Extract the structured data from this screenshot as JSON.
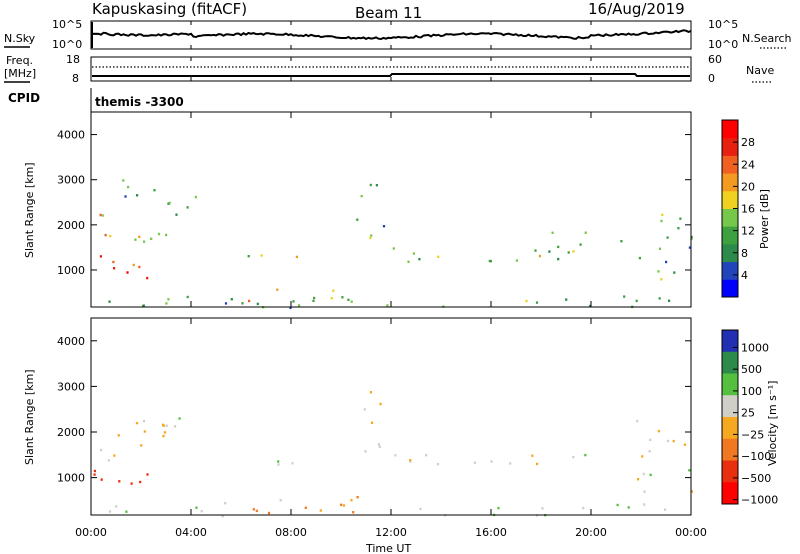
{
  "header": {
    "station": "Kapuskasing (fitACF)",
    "beam": "Beam 11",
    "date": "16/Aug/2019"
  },
  "summary_panels": {
    "nsky_label": "N.Sky",
    "nsearch_label": "N.Search",
    "freq_label_1": "Freq.",
    "freq_label_2": "[MHz]",
    "nave_label": "Nave",
    "cpid_label": "CPID",
    "cpid_value": "themis -3300",
    "noise_left_ticks": [
      "10^5",
      "10^0"
    ],
    "noise_right_ticks": [
      "10^5",
      "10^0"
    ],
    "freq_ticks": [
      "18",
      "8"
    ],
    "nave_ticks": [
      "60",
      "0"
    ]
  },
  "axes": {
    "ylabel": "Slant Range [km]",
    "xlabel": "Time UT",
    "yticks": [
      "1000",
      "2000",
      "3000",
      "4000"
    ],
    "xticks": [
      "00:00",
      "04:00",
      "08:00",
      "12:00",
      "16:00",
      "20:00",
      "00:00"
    ]
  },
  "colorbars": {
    "power": {
      "label": "Power [dB]",
      "ticks": [
        "4",
        "8",
        "12",
        "16",
        "20",
        "24",
        "28"
      ],
      "colors": [
        "#0000ff",
        "#2244bb",
        "#2e8a4a",
        "#3fa040",
        "#76c84a",
        "#f0d020",
        "#f59a20",
        "#f06020",
        "#e82010",
        "#ff0000"
      ]
    },
    "velocity": {
      "label": "Velocity [m s⁻¹]",
      "ticks": [
        "1000",
        "500",
        "100",
        "25",
        "−25",
        "−100",
        "−500",
        "−1000"
      ],
      "colors": [
        "#2030b0",
        "#2e8a4a",
        "#55c040",
        "#cfcfc8",
        "#f5a820",
        "#f07820",
        "#e83010",
        "#ff0000"
      ]
    }
  },
  "chart_data": {
    "type": "heatmap",
    "x_unit": "hours UT",
    "y_unit": "km",
    "xlim": [
      0,
      24
    ],
    "ylim": [
      180,
      4500
    ],
    "power_bands": [
      {
        "t0": 0.1,
        "t1": 3.3,
        "r0": 800,
        "r1": 1400,
        "level": 8
      },
      {
        "t0": 0.2,
        "t1": 3.0,
        "r0": 1400,
        "r1": 2300,
        "level": 5
      },
      {
        "t0": 0.3,
        "t1": 2.6,
        "r0": 2600,
        "r1": 3200,
        "level": 3
      },
      {
        "t0": 2.7,
        "t1": 4.2,
        "r0": 1900,
        "r1": 2700,
        "level": 3
      },
      {
        "t0": 6.2,
        "t1": 8.9,
        "r0": 1250,
        "r1": 1500,
        "level": 4
      },
      {
        "t0": 10.6,
        "t1": 11.8,
        "r0": 1600,
        "r1": 3100,
        "level": 3
      },
      {
        "t0": 12.0,
        "t1": 20.0,
        "r0": 1200,
        "r1": 1600,
        "level": 4
      },
      {
        "t0": 18.0,
        "t1": 21.5,
        "r0": 1400,
        "r1": 1900,
        "level": 3
      },
      {
        "t0": 21.8,
        "t1": 24.0,
        "r0": 700,
        "r1": 2300,
        "level": 3
      },
      {
        "t0": 0.0,
        "t1": 24.0,
        "r0": 180,
        "r1": 450,
        "level": 3
      },
      {
        "t0": 5.5,
        "t1": 11.0,
        "r0": 180,
        "r1": 600,
        "level": 5
      }
    ],
    "velocity_bands": [
      {
        "t0": 0.1,
        "t1": 3.3,
        "r0": 800,
        "r1": 1400,
        "v": -500
      },
      {
        "t0": 0.2,
        "t1": 3.0,
        "r0": 1400,
        "r1": 2300,
        "v": 0
      },
      {
        "t0": 2.7,
        "t1": 4.2,
        "r0": 1900,
        "r1": 2700,
        "v": 0
      },
      {
        "t0": 6.2,
        "t1": 8.9,
        "r0": 1250,
        "r1": 1500,
        "v": 0
      },
      {
        "t0": 10.6,
        "t1": 11.8,
        "r0": 1600,
        "r1": 3100,
        "v": 0
      },
      {
        "t0": 12.0,
        "t1": 20.0,
        "r0": 1200,
        "r1": 1600,
        "v": 0
      },
      {
        "t0": 21.8,
        "t1": 24.0,
        "r0": 700,
        "r1": 2300,
        "v": 0
      },
      {
        "t0": 0.0,
        "t1": 5.5,
        "r0": 180,
        "r1": 500,
        "v": 50
      },
      {
        "t0": 5.5,
        "t1": 12.0,
        "r0": 180,
        "r1": 600,
        "v": -100
      },
      {
        "t0": 12.0,
        "t1": 24.0,
        "r0": 180,
        "r1": 450,
        "v": 50
      }
    ]
  }
}
